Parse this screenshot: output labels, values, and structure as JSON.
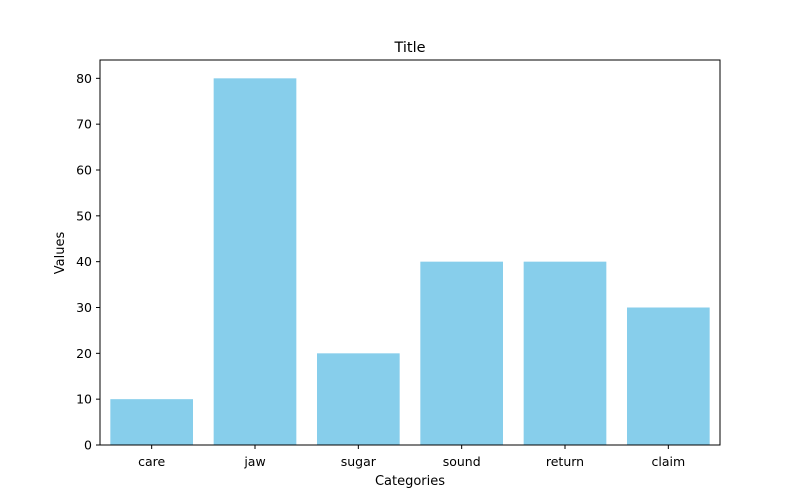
{
  "chart_data": {
    "type": "bar",
    "title": "Title",
    "xlabel": "Categories",
    "ylabel": "Values",
    "categories": [
      "care",
      "jaw",
      "sugar",
      "sound",
      "return",
      "claim"
    ],
    "values": [
      10,
      80,
      20,
      40,
      40,
      30
    ],
    "ylim": [
      0,
      84
    ],
    "yticks": [
      0,
      10,
      20,
      30,
      40,
      50,
      60,
      70,
      80
    ],
    "bar_color": "#87ceeb",
    "grid": false,
    "legend": "none"
  }
}
